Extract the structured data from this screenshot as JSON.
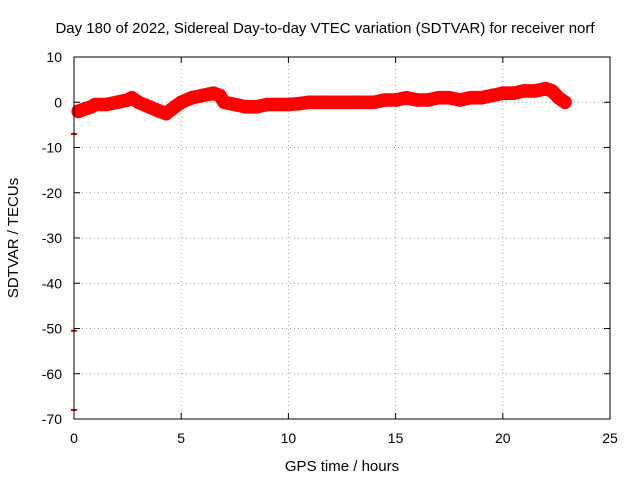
{
  "chart_data": {
    "type": "line",
    "title": "Day 180 of 2022, Sidereal Day-to-day VTEC variation (SDTVAR) for receiver norf",
    "xlabel": "GPS time / hours",
    "ylabel": "SDTVAR / TECUs",
    "xlim": [
      0,
      25
    ],
    "ylim": [
      -70,
      10
    ],
    "xticks": [
      0,
      5,
      10,
      15,
      20,
      25
    ],
    "yticks": [
      10,
      0,
      -10,
      -20,
      -30,
      -40,
      -50,
      -60,
      -70
    ],
    "grid": true,
    "series": [
      {
        "name": "SDTVAR",
        "color": "#ff0000",
        "x": [
          0.2,
          0.5,
          0.8,
          1.0,
          1.5,
          2.0,
          2.5,
          2.7,
          3.0,
          3.5,
          4.0,
          4.3,
          4.7,
          5.0,
          5.5,
          6.0,
          6.5,
          6.8,
          7.0,
          7.5,
          8.0,
          8.5,
          9.0,
          9.5,
          10.0,
          10.5,
          11.0,
          11.5,
          12.0,
          12.5,
          13.0,
          13.5,
          14.0,
          14.5,
          15.0,
          15.5,
          16.0,
          16.5,
          17.0,
          17.5,
          18.0,
          18.5,
          19.0,
          19.5,
          20.0,
          20.5,
          21.0,
          21.5,
          22.0,
          22.3,
          22.6,
          22.9
        ],
        "y": [
          -2,
          -1.5,
          -1,
          -0.5,
          -0.5,
          0,
          0.5,
          1,
          0,
          -1,
          -2,
          -2.5,
          -1,
          0,
          1,
          1.5,
          2,
          1.5,
          0,
          -0.5,
          -1,
          -1,
          -0.5,
          -0.5,
          -0.5,
          -0.3,
          0,
          0,
          0,
          0,
          0,
          0,
          0,
          0.5,
          0.5,
          1,
          0.5,
          0.5,
          1,
          1,
          0.5,
          1,
          1,
          1.5,
          2,
          2,
          2.5,
          2.5,
          3,
          2.5,
          1,
          0
        ],
        "thickness_tecu": 1.5
      }
    ],
    "edge_marks": {
      "color": "#cc0000",
      "x": [
        0,
        0,
        0
      ],
      "y": [
        -7,
        -50.5,
        -68
      ]
    }
  }
}
